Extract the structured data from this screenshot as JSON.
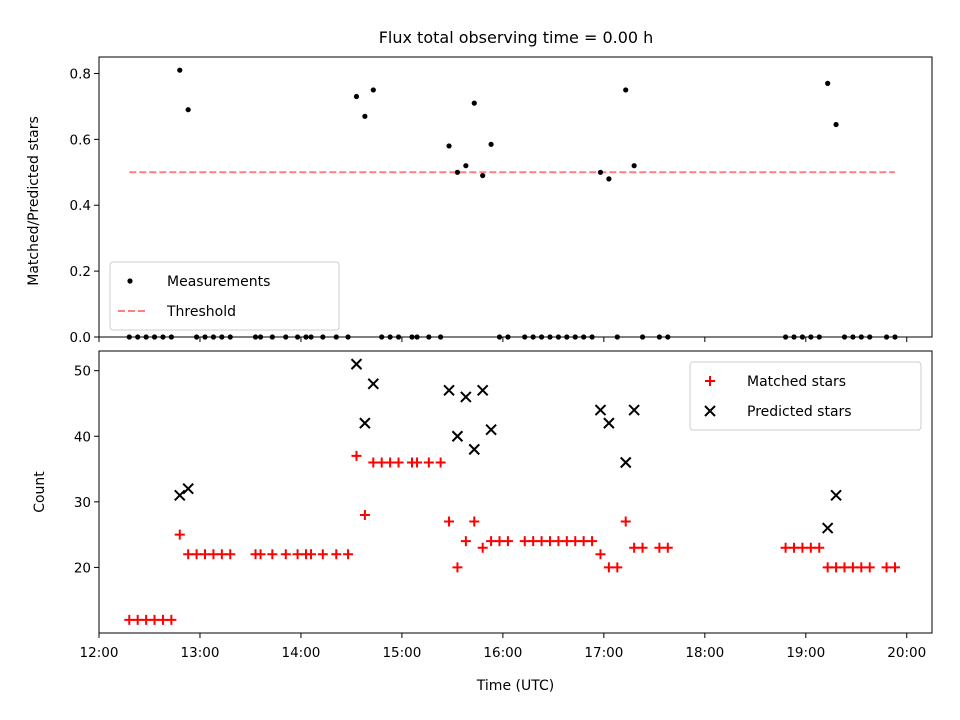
{
  "figure_title": "Flux total observing time = 0.00 h",
  "chart_data": [
    {
      "type": "scatter",
      "title": "Flux total observing time = 0.00 h",
      "xlabel": "",
      "ylabel": "Matched/Predicted stars",
      "xlim": [
        "12:00",
        "20:15"
      ],
      "ylim": [
        0,
        0.85
      ],
      "yticks": [
        0.0,
        0.2,
        0.4,
        0.6,
        0.8
      ],
      "ytick_labels": [
        "0.0",
        "0.2",
        "0.4",
        "0.6",
        "0.8"
      ],
      "legend_position": "lower-left",
      "series": [
        {
          "name": "Measurements",
          "marker": "dot",
          "color": "#000000",
          "points": [
            [
              "12:18",
              0
            ],
            [
              "12:23",
              0
            ],
            [
              "12:28",
              0
            ],
            [
              "12:33",
              0
            ],
            [
              "12:38",
              0
            ],
            [
              "12:43",
              0
            ],
            [
              "12:48",
              0.81
            ],
            [
              "12:53",
              0.69
            ],
            [
              "12:58",
              0
            ],
            [
              "13:03",
              0
            ],
            [
              "13:08",
              0
            ],
            [
              "13:13",
              0
            ],
            [
              "13:18",
              0
            ],
            [
              "13:33",
              0
            ],
            [
              "13:36",
              0
            ],
            [
              "13:43",
              0
            ],
            [
              "13:51",
              0
            ],
            [
              "13:58",
              0
            ],
            [
              "14:03",
              0
            ],
            [
              "14:06",
              0
            ],
            [
              "14:13",
              0
            ],
            [
              "14:21",
              0
            ],
            [
              "14:28",
              0
            ],
            [
              "14:33",
              0.73
            ],
            [
              "14:38",
              0.67
            ],
            [
              "14:43",
              0.75
            ],
            [
              "14:48",
              0
            ],
            [
              "14:53",
              0
            ],
            [
              "14:58",
              0
            ],
            [
              "15:06",
              0
            ],
            [
              "15:09",
              0
            ],
            [
              "15:16",
              0
            ],
            [
              "15:23",
              0
            ],
            [
              "15:28",
              0.58
            ],
            [
              "15:33",
              0.5
            ],
            [
              "15:38",
              0.52
            ],
            [
              "15:43",
              0.71
            ],
            [
              "15:48",
              0.49
            ],
            [
              "15:53",
              0.585
            ],
            [
              "15:58",
              0
            ],
            [
              "16:03",
              0
            ],
            [
              "16:13",
              0
            ],
            [
              "16:18",
              0
            ],
            [
              "16:23",
              0
            ],
            [
              "16:28",
              0
            ],
            [
              "16:33",
              0
            ],
            [
              "16:38",
              0
            ],
            [
              "16:43",
              0
            ],
            [
              "16:48",
              0
            ],
            [
              "16:53",
              0
            ],
            [
              "16:58",
              0.5
            ],
            [
              "17:03",
              0.48
            ],
            [
              "17:08",
              0
            ],
            [
              "17:13",
              0.75
            ],
            [
              "17:18",
              0.52
            ],
            [
              "17:23",
              0
            ],
            [
              "17:33",
              0
            ],
            [
              "17:38",
              0
            ],
            [
              "18:48",
              0
            ],
            [
              "18:53",
              0
            ],
            [
              "18:58",
              0
            ],
            [
              "19:03",
              0
            ],
            [
              "19:08",
              0
            ],
            [
              "19:13",
              0.77
            ],
            [
              "19:18",
              0.645
            ],
            [
              "19:23",
              0
            ],
            [
              "19:28",
              0
            ],
            [
              "19:33",
              0
            ],
            [
              "19:38",
              0
            ],
            [
              "19:48",
              0
            ],
            [
              "19:53",
              0
            ]
          ]
        },
        {
          "name": "Threshold",
          "marker": "dashed-line",
          "color": "#ff7f7f",
          "points": [
            [
              "12:18",
              0.5
            ],
            [
              "19:53",
              0.5
            ]
          ]
        }
      ]
    },
    {
      "type": "scatter",
      "xlabel": "Time (UTC)",
      "ylabel": "Count",
      "xlim": [
        "12:00",
        "20:15"
      ],
      "ylim": [
        10,
        53
      ],
      "yticks": [
        20,
        30,
        40,
        50
      ],
      "ytick_labels": [
        "20",
        "30",
        "40",
        "50"
      ],
      "xticks": [
        "12:00",
        "13:00",
        "14:00",
        "15:00",
        "16:00",
        "17:00",
        "18:00",
        "19:00",
        "20:00"
      ],
      "legend_position": "upper-right",
      "series": [
        {
          "name": "Matched stars",
          "marker": "plus",
          "color": "#ff0000",
          "points": [
            [
              "12:18",
              12
            ],
            [
              "12:23",
              12
            ],
            [
              "12:28",
              12
            ],
            [
              "12:33",
              12
            ],
            [
              "12:38",
              12
            ],
            [
              "12:43",
              12
            ],
            [
              "12:48",
              25
            ],
            [
              "12:53",
              22
            ],
            [
              "12:58",
              22
            ],
            [
              "13:03",
              22
            ],
            [
              "13:08",
              22
            ],
            [
              "13:13",
              22
            ],
            [
              "13:18",
              22
            ],
            [
              "13:33",
              22
            ],
            [
              "13:36",
              22
            ],
            [
              "13:43",
              22
            ],
            [
              "13:51",
              22
            ],
            [
              "13:58",
              22
            ],
            [
              "14:03",
              22
            ],
            [
              "14:06",
              22
            ],
            [
              "14:13",
              22
            ],
            [
              "14:21",
              22
            ],
            [
              "14:28",
              22
            ],
            [
              "14:33",
              37
            ],
            [
              "14:38",
              28
            ],
            [
              "14:43",
              36
            ],
            [
              "14:48",
              36
            ],
            [
              "14:53",
              36
            ],
            [
              "14:58",
              36
            ],
            [
              "15:06",
              36
            ],
            [
              "15:09",
              36
            ],
            [
              "15:16",
              36
            ],
            [
              "15:23",
              36
            ],
            [
              "15:28",
              27
            ],
            [
              "15:33",
              20
            ],
            [
              "15:38",
              24
            ],
            [
              "15:43",
              27
            ],
            [
              "15:48",
              23
            ],
            [
              "15:53",
              24
            ],
            [
              "15:58",
              24
            ],
            [
              "16:03",
              24
            ],
            [
              "16:13",
              24
            ],
            [
              "16:18",
              24
            ],
            [
              "16:23",
              24
            ],
            [
              "16:28",
              24
            ],
            [
              "16:33",
              24
            ],
            [
              "16:38",
              24
            ],
            [
              "16:43",
              24
            ],
            [
              "16:48",
              24
            ],
            [
              "16:53",
              24
            ],
            [
              "16:58",
              22
            ],
            [
              "17:03",
              20
            ],
            [
              "17:08",
              20
            ],
            [
              "17:13",
              27
            ],
            [
              "17:18",
              23
            ],
            [
              "17:23",
              23
            ],
            [
              "17:33",
              23
            ],
            [
              "17:38",
              23
            ],
            [
              "18:48",
              23
            ],
            [
              "18:53",
              23
            ],
            [
              "18:58",
              23
            ],
            [
              "19:03",
              23
            ],
            [
              "19:08",
              23
            ],
            [
              "19:13",
              20
            ],
            [
              "19:18",
              20
            ],
            [
              "19:23",
              20
            ],
            [
              "19:28",
              20
            ],
            [
              "19:33",
              20
            ],
            [
              "19:38",
              20
            ],
            [
              "19:48",
              20
            ],
            [
              "19:53",
              20
            ]
          ]
        },
        {
          "name": "Predicted stars",
          "marker": "x",
          "color": "#000000",
          "points": [
            [
              "12:48",
              31
            ],
            [
              "12:53",
              32
            ],
            [
              "14:33",
              51
            ],
            [
              "14:38",
              42
            ],
            [
              "14:43",
              48
            ],
            [
              "15:28",
              47
            ],
            [
              "15:33",
              40
            ],
            [
              "15:38",
              46
            ],
            [
              "15:43",
              38
            ],
            [
              "15:48",
              47
            ],
            [
              "15:53",
              41
            ],
            [
              "16:58",
              44
            ],
            [
              "17:03",
              42
            ],
            [
              "17:13",
              36
            ],
            [
              "17:18",
              44
            ],
            [
              "19:13",
              26
            ],
            [
              "19:18",
              31
            ]
          ]
        }
      ]
    }
  ]
}
